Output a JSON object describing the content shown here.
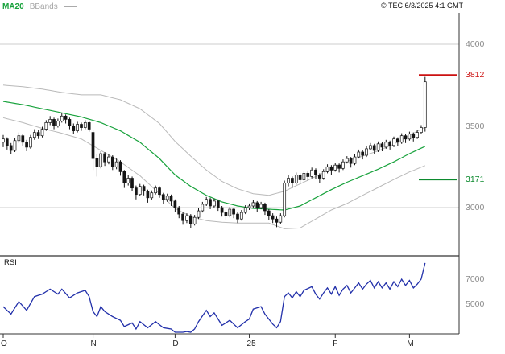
{
  "header": {
    "ma_label": "MA20",
    "bbands_label": "BBands",
    "copyright": "© TEC 6/3/2025 4:1 GMT"
  },
  "colors": {
    "ma20": "#18a23c",
    "bbands": "#b9b9b9",
    "grid": "#cccccc",
    "candle": "#151515",
    "rsi": "#2230aa",
    "axis_text": "#8a8a8a",
    "month_text": "#222222",
    "border": "#333333",
    "level_high": "#cc1111",
    "level_low": "#0c8a2e"
  },
  "x_axis": {
    "labels": [
      {
        "label": "O",
        "day": 0
      },
      {
        "label": "N",
        "day": 23
      },
      {
        "label": "D",
        "day": 44
      },
      {
        "label": "25",
        "day": 63
      },
      {
        "label": "F",
        "day": 85
      },
      {
        "label": "M",
        "day": 104
      }
    ]
  },
  "chart_data": [
    {
      "type": "candlestick",
      "title": "",
      "x_axis_ticks": [
        "O",
        "N",
        "D",
        "25",
        "F",
        "M"
      ],
      "ylim": [
        2700,
        4180
      ],
      "price_gridlines": [
        {
          "value": 4000,
          "label": "4000"
        },
        {
          "value": 3500,
          "label": "3500"
        },
        {
          "value": 3000,
          "label": "3000"
        }
      ],
      "levels": [
        {
          "value": 3812,
          "label": "3812",
          "color": "#cc1111"
        },
        {
          "value": 3171,
          "label": "3171",
          "color": "#0c8a2e"
        }
      ],
      "candles_ohlc": [
        [
          3400,
          3445,
          3370,
          3420
        ],
        [
          3420,
          3430,
          3355,
          3380
        ],
        [
          3380,
          3395,
          3325,
          3350
        ],
        [
          3350,
          3425,
          3340,
          3410
        ],
        [
          3410,
          3460,
          3395,
          3440
        ],
        [
          3440,
          3450,
          3380,
          3400
        ],
        [
          3400,
          3415,
          3345,
          3370
        ],
        [
          3370,
          3445,
          3360,
          3430
        ],
        [
          3430,
          3480,
          3415,
          3460
        ],
        [
          3460,
          3475,
          3420,
          3440
        ],
        [
          3440,
          3495,
          3430,
          3480
        ],
        [
          3480,
          3535,
          3470,
          3520
        ],
        [
          3520,
          3560,
          3505,
          3540
        ],
        [
          3540,
          3550,
          3480,
          3500
        ],
        [
          3500,
          3545,
          3490,
          3530
        ],
        [
          3530,
          3580,
          3520,
          3560
        ],
        [
          3560,
          3570,
          3515,
          3540
        ],
        [
          3540,
          3550,
          3480,
          3500
        ],
        [
          3500,
          3515,
          3450,
          3470
        ],
        [
          3470,
          3525,
          3460,
          3510
        ],
        [
          3510,
          3520,
          3470,
          3490
        ],
        [
          3490,
          3535,
          3480,
          3520
        ],
        [
          3520,
          3530,
          3465,
          3480
        ],
        [
          3460,
          3475,
          3230,
          3300
        ],
        [
          3300,
          3330,
          3190,
          3250
        ],
        [
          3250,
          3345,
          3240,
          3330
        ],
        [
          3330,
          3340,
          3255,
          3280
        ],
        [
          3280,
          3330,
          3265,
          3310
        ],
        [
          3310,
          3320,
          3230,
          3250
        ],
        [
          3250,
          3300,
          3235,
          3280
        ],
        [
          3280,
          3290,
          3195,
          3220
        ],
        [
          3220,
          3230,
          3120,
          3150
        ],
        [
          3150,
          3200,
          3135,
          3180
        ],
        [
          3180,
          3190,
          3100,
          3120
        ],
        [
          3120,
          3135,
          3050,
          3080
        ],
        [
          3080,
          3145,
          3070,
          3130
        ],
        [
          3130,
          3140,
          3075,
          3100
        ],
        [
          3100,
          3110,
          3030,
          3060
        ],
        [
          3060,
          3105,
          3045,
          3090
        ],
        [
          3090,
          3135,
          3080,
          3120
        ],
        [
          3120,
          3130,
          3060,
          3080
        ],
        [
          3080,
          3090,
          3020,
          3050
        ],
        [
          3050,
          3085,
          3035,
          3070
        ],
        [
          3070,
          3080,
          3010,
          3040
        ],
        [
          3040,
          3050,
          2975,
          3000
        ],
        [
          3000,
          3010,
          2935,
          2960
        ],
        [
          2960,
          2975,
          2895,
          2920
        ],
        [
          2920,
          2965,
          2905,
          2950
        ],
        [
          2950,
          2960,
          2875,
          2900
        ],
        [
          2900,
          2955,
          2890,
          2940
        ],
        [
          2940,
          2995,
          2930,
          2980
        ],
        [
          2980,
          3035,
          2970,
          3020
        ],
        [
          3020,
          3065,
          3010,
          3050
        ],
        [
          3050,
          3060,
          2990,
          3010
        ],
        [
          3010,
          3055,
          3000,
          3040
        ],
        [
          3040,
          3050,
          2980,
          3000
        ],
        [
          3000,
          3010,
          2945,
          2970
        ],
        [
          2970,
          2985,
          2925,
          2950
        ],
        [
          2950,
          3005,
          2940,
          2990
        ],
        [
          2990,
          3000,
          2935,
          2960
        ],
        [
          2960,
          2970,
          2905,
          2930
        ],
        [
          2930,
          2985,
          2920,
          2970
        ],
        [
          2970,
          3015,
          2960,
          3000
        ],
        [
          3000,
          3025,
          2985,
          3010
        ],
        [
          3010,
          3045,
          3000,
          3030
        ],
        [
          3030,
          3040,
          2975,
          3000
        ],
        [
          3000,
          3035,
          2990,
          3020
        ],
        [
          3020,
          3030,
          2955,
          2980
        ],
        [
          2980,
          2990,
          2925,
          2950
        ],
        [
          2950,
          2965,
          2905,
          2930
        ],
        [
          2930,
          2945,
          2880,
          2910
        ],
        [
          2910,
          2965,
          2900,
          2950
        ],
        [
          2950,
          3165,
          2940,
          3150
        ],
        [
          3150,
          3200,
          3130,
          3180
        ],
        [
          3180,
          3190,
          3120,
          3150
        ],
        [
          3150,
          3215,
          3140,
          3200
        ],
        [
          3200,
          3210,
          3145,
          3170
        ],
        [
          3170,
          3225,
          3160,
          3210
        ],
        [
          3210,
          3220,
          3165,
          3190
        ],
        [
          3190,
          3245,
          3180,
          3230
        ],
        [
          3230,
          3240,
          3175,
          3200
        ],
        [
          3200,
          3210,
          3150,
          3180
        ],
        [
          3180,
          3235,
          3170,
          3220
        ],
        [
          3220,
          3265,
          3210,
          3250
        ],
        [
          3250,
          3260,
          3200,
          3230
        ],
        [
          3230,
          3275,
          3220,
          3260
        ],
        [
          3260,
          3270,
          3215,
          3240
        ],
        [
          3240,
          3295,
          3230,
          3280
        ],
        [
          3280,
          3315,
          3270,
          3300
        ],
        [
          3300,
          3310,
          3245,
          3270
        ],
        [
          3270,
          3325,
          3260,
          3310
        ],
        [
          3310,
          3355,
          3300,
          3340
        ],
        [
          3340,
          3350,
          3295,
          3320
        ],
        [
          3320,
          3375,
          3310,
          3360
        ],
        [
          3360,
          3395,
          3350,
          3380
        ],
        [
          3380,
          3390,
          3325,
          3350
        ],
        [
          3350,
          3405,
          3340,
          3390
        ],
        [
          3390,
          3400,
          3345,
          3370
        ],
        [
          3370,
          3415,
          3360,
          3400
        ],
        [
          3400,
          3410,
          3355,
          3380
        ],
        [
          3380,
          3435,
          3370,
          3420
        ],
        [
          3420,
          3430,
          3375,
          3400
        ],
        [
          3400,
          3455,
          3390,
          3440
        ],
        [
          3440,
          3450,
          3395,
          3420
        ],
        [
          3420,
          3465,
          3410,
          3450
        ],
        [
          3450,
          3460,
          3405,
          3430
        ],
        [
          3430,
          3475,
          3420,
          3460
        ],
        [
          3460,
          3505,
          3450,
          3490
        ],
        [
          3490,
          3800,
          3465,
          3770
        ]
      ],
      "overlays": {
        "ma20_points": [
          [
            0,
            3650
          ],
          [
            5,
            3630
          ],
          [
            10,
            3605
          ],
          [
            15,
            3580
          ],
          [
            20,
            3555
          ],
          [
            25,
            3520
          ],
          [
            30,
            3470
          ],
          [
            35,
            3400
          ],
          [
            40,
            3300
          ],
          [
            44,
            3200
          ],
          [
            48,
            3130
          ],
          [
            52,
            3075
          ],
          [
            56,
            3035
          ],
          [
            60,
            3010
          ],
          [
            64,
            2995
          ],
          [
            68,
            2990
          ],
          [
            72,
            2985
          ],
          [
            76,
            3010
          ],
          [
            80,
            3060
          ],
          [
            84,
            3110
          ],
          [
            88,
            3155
          ],
          [
            92,
            3195
          ],
          [
            96,
            3235
          ],
          [
            100,
            3280
          ],
          [
            104,
            3330
          ],
          [
            108,
            3375
          ]
        ],
        "bollinger_offset_points": [
          [
            0,
            100
          ],
          [
            5,
            110
          ],
          [
            10,
            120
          ],
          [
            15,
            125
          ],
          [
            20,
            135
          ],
          [
            25,
            170
          ],
          [
            30,
            190
          ],
          [
            35,
            205
          ],
          [
            40,
            215
          ],
          [
            44,
            205
          ],
          [
            48,
            185
          ],
          [
            52,
            155
          ],
          [
            56,
            125
          ],
          [
            60,
            105
          ],
          [
            64,
            90
          ],
          [
            68,
            85
          ],
          [
            72,
            115
          ],
          [
            76,
            135
          ],
          [
            80,
            130
          ],
          [
            84,
            125
          ],
          [
            88,
            130
          ],
          [
            92,
            120
          ],
          [
            96,
            112
          ],
          [
            100,
            108
          ],
          [
            104,
            112
          ],
          [
            108,
            118
          ]
        ]
      }
    },
    {
      "type": "line",
      "title": "RSI",
      "ylim": [
        25,
        90
      ],
      "y_labels": [
        {
          "value": 70,
          "label": "7000"
        },
        {
          "value": 50,
          "label": "5000"
        }
      ],
      "points": [
        [
          0,
          48
        ],
        [
          2,
          42
        ],
        [
          4,
          52
        ],
        [
          6,
          45
        ],
        [
          8,
          56
        ],
        [
          10,
          58
        ],
        [
          12,
          62
        ],
        [
          14,
          58
        ],
        [
          15,
          62
        ],
        [
          17,
          55
        ],
        [
          19,
          59
        ],
        [
          21,
          61
        ],
        [
          22,
          56
        ],
        [
          23,
          44
        ],
        [
          24,
          40
        ],
        [
          25,
          48
        ],
        [
          26,
          44
        ],
        [
          28,
          40
        ],
        [
          30,
          37
        ],
        [
          31,
          32
        ],
        [
          33,
          35
        ],
        [
          34,
          30
        ],
        [
          35,
          36
        ],
        [
          37,
          31
        ],
        [
          39,
          36
        ],
        [
          41,
          31
        ],
        [
          43,
          30
        ],
        [
          44,
          27
        ],
        [
          46,
          24
        ],
        [
          47,
          28
        ],
        [
          48,
          24
        ],
        [
          50,
          36
        ],
        [
          52,
          45
        ],
        [
          53,
          40
        ],
        [
          54,
          43
        ],
        [
          56,
          33
        ],
        [
          58,
          37
        ],
        [
          60,
          31
        ],
        [
          62,
          36
        ],
        [
          63,
          38
        ],
        [
          64,
          46
        ],
        [
          66,
          48
        ],
        [
          67,
          42
        ],
        [
          69,
          34
        ],
        [
          70,
          31
        ],
        [
          71,
          36
        ],
        [
          72,
          56
        ],
        [
          73,
          59
        ],
        [
          74,
          55
        ],
        [
          75,
          60
        ],
        [
          76,
          56
        ],
        [
          77,
          61
        ],
        [
          79,
          64
        ],
        [
          80,
          58
        ],
        [
          81,
          54
        ],
        [
          82,
          59
        ],
        [
          83,
          63
        ],
        [
          84,
          58
        ],
        [
          85,
          64
        ],
        [
          86,
          57
        ],
        [
          87,
          62
        ],
        [
          88,
          65
        ],
        [
          89,
          59
        ],
        [
          90,
          63
        ],
        [
          91,
          67
        ],
        [
          92,
          62
        ],
        [
          93,
          66
        ],
        [
          94,
          69
        ],
        [
          95,
          63
        ],
        [
          96,
          68
        ],
        [
          97,
          63
        ],
        [
          98,
          67
        ],
        [
          99,
          62
        ],
        [
          100,
          68
        ],
        [
          101,
          64
        ],
        [
          102,
          70
        ],
        [
          103,
          65
        ],
        [
          104,
          69
        ],
        [
          105,
          63
        ],
        [
          106,
          66
        ],
        [
          107,
          70
        ],
        [
          108,
          83
        ]
      ]
    }
  ]
}
